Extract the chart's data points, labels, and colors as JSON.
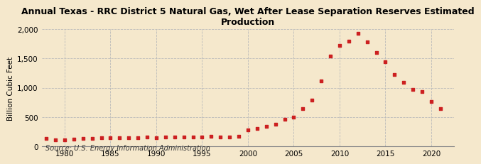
{
  "title": "Annual Texas - RRC District 5 Natural Gas, Wet After Lease Separation Reserves Estimated\nProduction",
  "ylabel": "Billion Cubic Feet",
  "source": "Source: U.S. Energy Information Administration",
  "background_color": "#f5e8cc",
  "plot_bg_color": "#f5e8cc",
  "marker_color": "#cc2020",
  "years": [
    1978,
    1979,
    1980,
    1981,
    1982,
    1983,
    1984,
    1985,
    1986,
    1987,
    1988,
    1989,
    1990,
    1991,
    1992,
    1993,
    1994,
    1995,
    1996,
    1997,
    1998,
    1999,
    2000,
    2001,
    2002,
    2003,
    2004,
    2005,
    2006,
    2007,
    2008,
    2009,
    2010,
    2011,
    2012,
    2013,
    2014,
    2015,
    2016,
    2017,
    2018,
    2019,
    2020,
    2021
  ],
  "values": [
    130,
    115,
    110,
    120,
    135,
    130,
    145,
    150,
    145,
    145,
    150,
    155,
    150,
    155,
    155,
    155,
    155,
    160,
    170,
    160,
    165,
    175,
    285,
    305,
    340,
    380,
    465,
    495,
    645,
    790,
    1115,
    1540,
    1720,
    1790,
    1930,
    1785,
    1600,
    1450,
    1225,
    1095,
    970,
    930,
    770,
    640
  ],
  "ylim": [
    0,
    2000
  ],
  "yticks": [
    0,
    500,
    1000,
    1500,
    2000
  ],
  "xlim": [
    1977.5,
    2022.5
  ],
  "xticks": [
    1980,
    1985,
    1990,
    1995,
    2000,
    2005,
    2010,
    2015,
    2020
  ]
}
